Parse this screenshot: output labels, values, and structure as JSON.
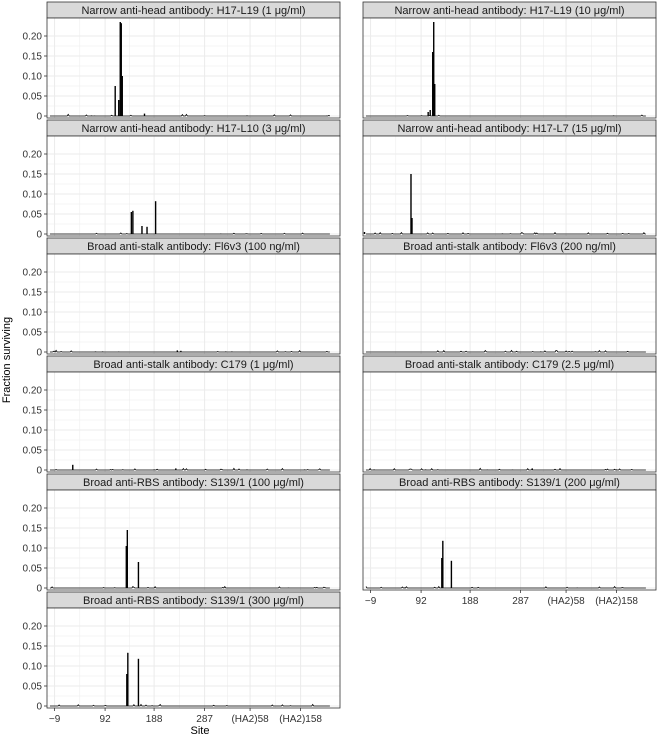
{
  "chart_data": {
    "type": "bar",
    "ylabel": "Fraction surviving",
    "xlabel": "Site",
    "y_ticks": [
      "0",
      "0.05",
      "0.10",
      "0.15",
      "0.20"
    ],
    "y_tick_values": [
      0,
      0.05,
      0.1,
      0.15,
      0.2
    ],
    "ylim": [
      -0.005,
      0.245
    ],
    "x_ticks": [
      "−9",
      "92",
      "188",
      "287",
      "(HA2)58",
      "(HA2)158"
    ],
    "x_tick_values": [
      0,
      100,
      197,
      297,
      387,
      487
    ],
    "xlim": [
      -15,
      565
    ],
    "grid": true,
    "colors": {
      "strip_fill": "#d9d9d9",
      "panel_border": "#333333",
      "grid": "#ebebeb",
      "line": "#000000"
    },
    "panels": [
      {
        "title": "Narrow anti-head antibody: H17-L19 (1 μg/ml)",
        "spikes": [
          [
            120,
            0.075
          ],
          [
            127,
            0.04
          ],
          [
            130,
            0.235
          ],
          [
            132,
            0.232
          ],
          [
            134,
            0.1
          ],
          [
            178,
            0.006
          ]
        ]
      },
      {
        "title": "Narrow anti-head antibody: H17-L19 (10 μg/ml)",
        "spikes": [
          [
            114,
            0.01
          ],
          [
            118,
            0.015
          ],
          [
            123,
            0.16
          ],
          [
            125,
            0.235
          ],
          [
            127,
            0.08
          ]
        ]
      },
      {
        "title": "Narrow anti-head antibody: H17-L10 (3 μg/ml)",
        "spikes": [
          [
            152,
            0.055
          ],
          [
            155,
            0.058
          ],
          [
            173,
            0.02
          ],
          [
            183,
            0.018
          ],
          [
            200,
            0.082
          ]
        ]
      },
      {
        "title": "Narrow anti-head antibody: H17-L7 (15 μg/ml)",
        "spikes": [
          [
            -12,
            0.005
          ],
          [
            80,
            0.15
          ],
          [
            82,
            0.04
          ]
        ]
      },
      {
        "title": "Broad anti-stalk antibody: Fl6v3 (100 ng/ml)",
        "spikes": [
          [
            243,
            0.004
          ],
          [
            250,
            0.003
          ]
        ]
      },
      {
        "title": "Broad anti-stalk antibody: Fl6v3 (200 ng/ml)",
        "spikes": []
      },
      {
        "title": "Broad anti-stalk antibody: C179 (1 μg/ml)",
        "spikes": [
          [
            36,
            0.013
          ],
          [
            240,
            0.004
          ]
        ]
      },
      {
        "title": "Broad anti-stalk antibody: C179 (2.5 μg/ml)",
        "spikes": [
          [
            320,
            0.004
          ]
        ]
      },
      {
        "title": "Broad anti-RBS antibody: S139/1 (100 μg/ml)",
        "spikes": [
          [
            142,
            0.105
          ],
          [
            144,
            0.145
          ],
          [
            166,
            0.065
          ]
        ]
      },
      {
        "title": "Broad anti-RBS antibody: S139/1 (200 μg/ml)",
        "spikes": [
          [
            141,
            0.075
          ],
          [
            143,
            0.118
          ],
          [
            160,
            0.068
          ]
        ]
      },
      {
        "title": "Broad anti-RBS antibody: S139/1 (300 μg/ml)",
        "spikes": [
          [
            143,
            0.08
          ],
          [
            145,
            0.133
          ],
          [
            166,
            0.118
          ]
        ]
      }
    ]
  }
}
